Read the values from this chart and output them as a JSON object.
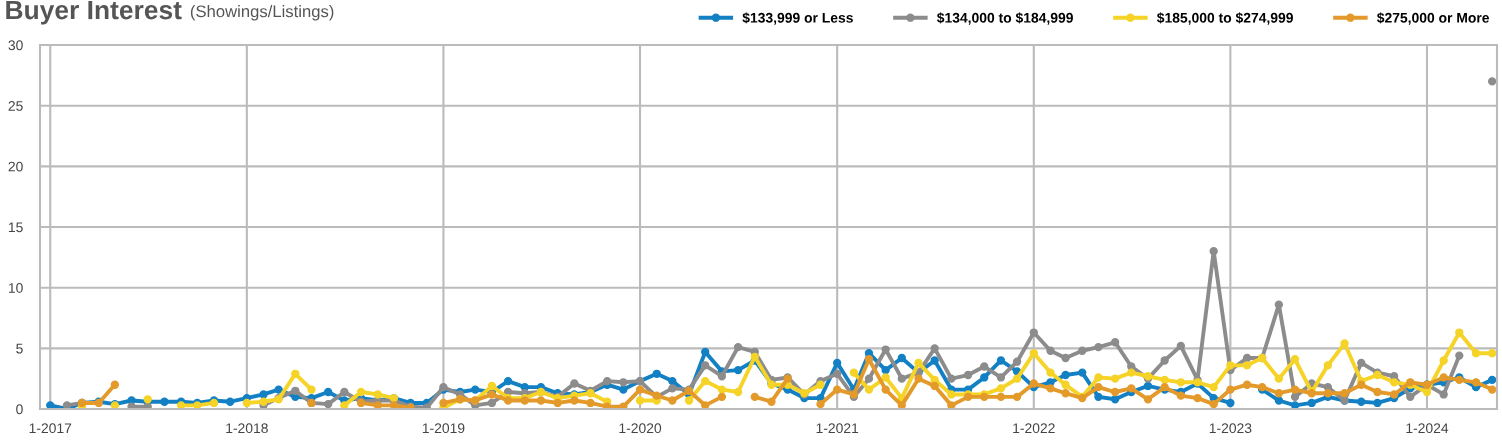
{
  "chart_data": {
    "type": "line",
    "title": "Buyer Interest",
    "subtitle": "(Showings/Listings)",
    "x": [
      "2017-01",
      "2017-02",
      "2017-03",
      "2017-04",
      "2017-05",
      "2017-06",
      "2017-07",
      "2017-08",
      "2017-09",
      "2017-10",
      "2017-11",
      "2017-12",
      "2018-01",
      "2018-02",
      "2018-03",
      "2018-04",
      "2018-05",
      "2018-06",
      "2018-07",
      "2018-08",
      "2018-09",
      "2018-10",
      "2018-11",
      "2018-12",
      "2019-01",
      "2019-02",
      "2019-03",
      "2019-04",
      "2019-05",
      "2019-06",
      "2019-07",
      "2019-08",
      "2019-09",
      "2019-10",
      "2019-11",
      "2019-12",
      "2020-01",
      "2020-02",
      "2020-03",
      "2020-04",
      "2020-05",
      "2020-06",
      "2020-07",
      "2020-08",
      "2020-09",
      "2020-10",
      "2020-11",
      "2020-12",
      "2021-01",
      "2021-02",
      "2021-03",
      "2021-04",
      "2021-05",
      "2021-06",
      "2021-07",
      "2021-08",
      "2021-09",
      "2021-10",
      "2021-11",
      "2021-12",
      "2022-01",
      "2022-02",
      "2022-03",
      "2022-04",
      "2022-05",
      "2022-06",
      "2022-07",
      "2022-08",
      "2022-09",
      "2022-10",
      "2022-11",
      "2022-12",
      "2023-01",
      "2023-02",
      "2023-03",
      "2023-04",
      "2023-05",
      "2023-06",
      "2023-07",
      "2023-08",
      "2023-09",
      "2023-10",
      "2023-11",
      "2023-12",
      "2024-01",
      "2024-02",
      "2024-03",
      "2024-04",
      "2024-05"
    ],
    "series": [
      {
        "name": "$133,999 or Less",
        "color": "#1380c4",
        "values": [
          0.3,
          0.0,
          0.5,
          0.6,
          0.4,
          0.7,
          0.6,
          0.6,
          0.6,
          0.5,
          0.7,
          0.6,
          0.9,
          1.2,
          1.6,
          1.0,
          0.9,
          1.4,
          0.7,
          0.9,
          0.7,
          0.9,
          0.5,
          0.5,
          1.6,
          1.4,
          1.6,
          1.4,
          2.3,
          1.8,
          1.8,
          1.3,
          1.2,
          1.4,
          2.0,
          1.6,
          2.3,
          2.9,
          2.3,
          1.2,
          4.7,
          3.1,
          3.2,
          4.0,
          2.1,
          1.6,
          0.9,
          0.9,
          3.8,
          1.6,
          4.6,
          3.2,
          4.2,
          3.0,
          4.0,
          1.6,
          1.6,
          2.6,
          4.0,
          3.1,
          1.8,
          2.2,
          2.8,
          3.0,
          1.0,
          0.8,
          1.4,
          1.9,
          1.6,
          1.4,
          2.1,
          0.9,
          0.5,
          null,
          1.6,
          0.7,
          0.3,
          0.5,
          1.0,
          0.7,
          0.6,
          0.5,
          0.9,
          1.7,
          2.0,
          2.2,
          2.6,
          1.8,
          2.4
        ]
      },
      {
        "name": "$134,000 to $184,999",
        "color": "#8c8c8c",
        "values": [
          null,
          0.3,
          0.5,
          null,
          null,
          0.2,
          0.2,
          null,
          null,
          null,
          null,
          null,
          null,
          0.3,
          0.9,
          1.5,
          0.5,
          0.4,
          1.4,
          0.6,
          0.7,
          0.7,
          0.2,
          0.1,
          1.8,
          1.2,
          0.3,
          0.5,
          1.4,
          1.3,
          1.4,
          1.0,
          2.1,
          1.5,
          2.3,
          2.2,
          2.3,
          1.0,
          1.7,
          1.6,
          3.6,
          2.7,
          5.1,
          4.7,
          2.4,
          2.6,
          1.2,
          2.3,
          2.9,
          1.0,
          2.5,
          4.9,
          2.5,
          3.0,
          5.0,
          2.5,
          2.8,
          3.5,
          2.6,
          3.9,
          6.3,
          4.8,
          4.2,
          4.8,
          5.1,
          5.5,
          3.5,
          2.5,
          4.0,
          5.2,
          2.4,
          13.0,
          3.2,
          4.2,
          4.2,
          8.6,
          1.0,
          2.1,
          1.8,
          0.7,
          3.8,
          3.0,
          2.7,
          1.0,
          2.0,
          1.2,
          4.4,
          null,
          27.0
        ]
      },
      {
        "name": "$185,000 to $274,999",
        "color": "#f5d327",
        "values": [
          null,
          null,
          0.2,
          null,
          0.3,
          null,
          0.8,
          null,
          0.3,
          0.3,
          0.5,
          null,
          0.5,
          0.6,
          0.8,
          2.9,
          1.6,
          null,
          0.3,
          1.4,
          1.2,
          0.9,
          null,
          null,
          0.1,
          0.8,
          0.7,
          1.9,
          0.9,
          0.9,
          1.4,
          0.9,
          1.1,
          1.3,
          0.6,
          null,
          0.7,
          0.7,
          null,
          0.7,
          2.3,
          1.6,
          1.4,
          4.3,
          2.0,
          2.0,
          1.3,
          2.0,
          null,
          3.0,
          1.6,
          2.6,
          0.9,
          3.8,
          2.4,
          1.2,
          1.2,
          1.2,
          1.7,
          2.5,
          4.6,
          3.0,
          2.0,
          1.0,
          2.6,
          2.5,
          3.0,
          2.7,
          2.4,
          2.2,
          2.2,
          1.8,
          3.6,
          3.6,
          4.2,
          2.5,
          4.1,
          1.4,
          3.6,
          5.4,
          2.3,
          2.8,
          2.2,
          2.0,
          1.4,
          4.0,
          6.3,
          4.6,
          4.6
        ]
      },
      {
        "name": "$275,000 or More",
        "color": "#e39a2a",
        "values": [
          null,
          null,
          0.5,
          0.5,
          2.0,
          null,
          null,
          null,
          null,
          null,
          null,
          null,
          null,
          null,
          null,
          null,
          0.5,
          null,
          null,
          0.5,
          0.3,
          0.3,
          0.1,
          null,
          0.5,
          0.8,
          0.7,
          1.2,
          0.7,
          0.7,
          0.7,
          0.5,
          0.7,
          0.5,
          0.2,
          0.2,
          1.6,
          1.1,
          0.7,
          1.5,
          0.3,
          1.0,
          null,
          1.0,
          0.6,
          2.5,
          null,
          0.4,
          1.6,
          1.2,
          4.1,
          1.6,
          0.3,
          2.5,
          1.9,
          0.3,
          1.0,
          1.0,
          1.0,
          1.0,
          2.1,
          1.7,
          1.3,
          0.9,
          1.8,
          1.4,
          1.7,
          0.8,
          1.8,
          1.1,
          0.9,
          0.4,
          1.6,
          2.0,
          1.8,
          1.3,
          1.6,
          1.3,
          1.3,
          1.3,
          2.0,
          1.4,
          1.2,
          2.2,
          2.0,
          2.6,
          2.4,
          2.2,
          1.6
        ]
      }
    ],
    "xlim": [
      "2016-12-13",
      "2024-05-10"
    ],
    "xticks": [
      {
        "value": "2017-01",
        "label": "1-2017"
      },
      {
        "value": "2018-01",
        "label": "1-2018"
      },
      {
        "value": "2019-01",
        "label": "1-2019"
      },
      {
        "value": "2020-01",
        "label": "1-2020"
      },
      {
        "value": "2021-01",
        "label": "1-2021"
      },
      {
        "value": "2022-01",
        "label": "1-2022"
      },
      {
        "value": "2023-01",
        "label": "1-2023"
      },
      {
        "value": "2024-01",
        "label": "1-2024"
      }
    ],
    "ylim": [
      0,
      30
    ],
    "yticks": [
      0,
      5,
      10,
      15,
      20,
      25,
      30
    ],
    "grid": true,
    "legend": "top right",
    "marker": "circle",
    "line_style": "solid"
  }
}
